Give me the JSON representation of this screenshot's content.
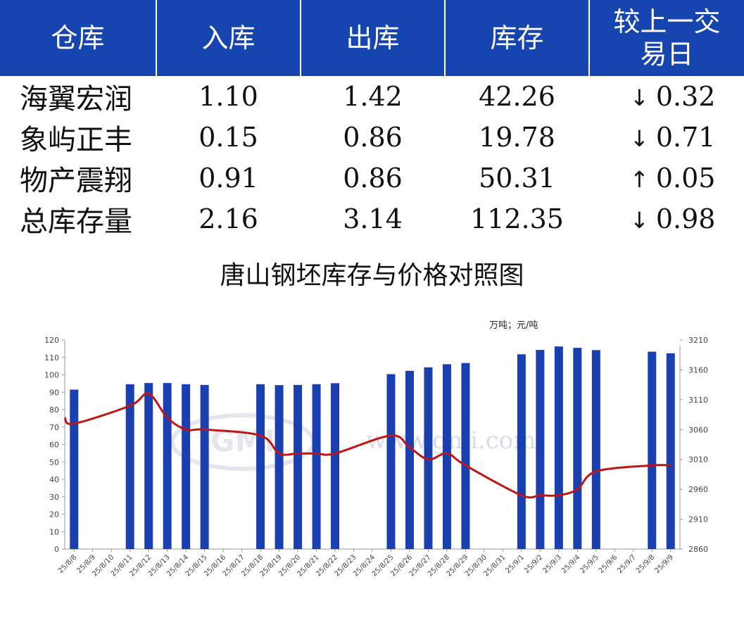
{
  "table": {
    "headers": [
      "仓库",
      "入库",
      "出库",
      "库存",
      "较上一交易日"
    ],
    "rows": [
      {
        "name": "海翼宏润",
        "in": "1.10",
        "out": "1.42",
        "stock": "42.26",
        "dir": "down",
        "change": "0.32"
      },
      {
        "name": "象屿正丰",
        "in": "0.15",
        "out": "0.86",
        "stock": "19.78",
        "dir": "down",
        "change": "0.71"
      },
      {
        "name": "物产震翔",
        "in": "0.91",
        "out": "0.86",
        "stock": "50.31",
        "dir": "up",
        "change": "0.05"
      },
      {
        "name": "总库存量",
        "in": "2.16",
        "out": "3.14",
        "stock": "112.35",
        "dir": "down",
        "change": "0.98"
      }
    ],
    "arrows": {
      "down": "↓",
      "up": "↑"
    },
    "colors": {
      "header_bg": "#1745b0",
      "down": "#0a8a14",
      "up": "#e8141a"
    }
  },
  "chart_title": "唐山钢坯库存与价格对照图",
  "chart_data": {
    "type": "bar",
    "unit_label": "万吨；元/吨",
    "watermark": "www.gmi.com",
    "categories": [
      "25/8/8",
      "25/8/9",
      "25/8/10",
      "25/8/11",
      "25/8/12",
      "25/8/13",
      "25/8/14",
      "25/8/15",
      "25/8/16",
      "25/8/17",
      "25/8/18",
      "25/8/19",
      "25/8/20",
      "25/8/21",
      "25/8/22",
      "25/8/23",
      "25/8/24",
      "25/8/25",
      "25/8/26",
      "25/8/27",
      "25/8/28",
      "25/8/29",
      "25/8/30",
      "25/8/31",
      "25/9/1",
      "25/9/2",
      "25/9/3",
      "25/9/4",
      "25/9/5",
      "25/9/6",
      "25/9/7",
      "25/9/8",
      "25/9/9"
    ],
    "series": [
      {
        "type": "bar",
        "axis": "left",
        "color": "#1a3fb0",
        "values": [
          91.5,
          null,
          null,
          94.6,
          95.3,
          95.3,
          94.6,
          94.2,
          null,
          null,
          94.6,
          94.1,
          94.2,
          94.6,
          95.2,
          null,
          null,
          100.4,
          102.3,
          104.3,
          106.1,
          106.8,
          null,
          null,
          111.8,
          114.3,
          116.3,
          115.5,
          114.2,
          null,
          null,
          113.3,
          112.35
        ]
      },
      {
        "type": "line",
        "axis": "right",
        "color": "#c01515",
        "values": [
          3070,
          null,
          null,
          3100,
          3120,
          3080,
          3060,
          3060,
          null,
          null,
          3050,
          3020,
          3020,
          3020,
          3020,
          null,
          null,
          3050,
          3030,
          3010,
          3020,
          3000,
          null,
          null,
          2950,
          2950,
          2950,
          2960,
          2990,
          null,
          null,
          3000,
          3000
        ]
      }
    ],
    "ylim": [
      0,
      120
    ],
    "yticks": [
      0,
      10,
      20,
      30,
      40,
      50,
      60,
      70,
      80,
      90,
      100,
      110,
      120
    ],
    "y2lim": [
      2860,
      3210
    ],
    "y2ticks": [
      2860,
      2910,
      2960,
      3010,
      3060,
      3110,
      3160,
      3210
    ],
    "legend": "none",
    "grid": false
  }
}
